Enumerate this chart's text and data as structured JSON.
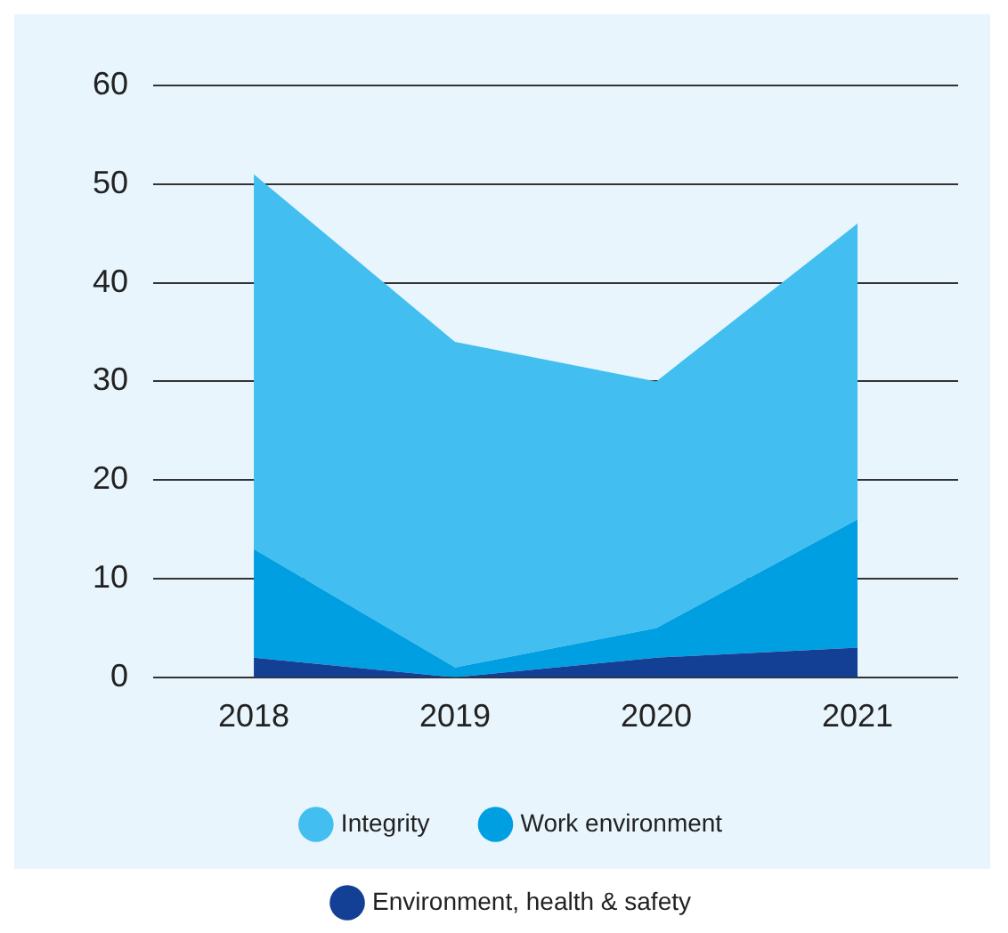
{
  "chart_data": {
    "type": "area",
    "stacked": true,
    "categories": [
      "2018",
      "2019",
      "2020",
      "2021"
    ],
    "series": [
      {
        "name": "Environment, health & safety",
        "color": "#133f94",
        "values": [
          2,
          0,
          2,
          3
        ]
      },
      {
        "name": "Work environment",
        "color": "#009fe2",
        "values": [
          11,
          1,
          3,
          13
        ]
      },
      {
        "name": "Integrity",
        "color": "#42bff0",
        "values": [
          38,
          33,
          25,
          30
        ]
      }
    ],
    "ylim": [
      0,
      60
    ],
    "yticks": [
      0,
      10,
      20,
      30,
      40,
      50,
      60
    ],
    "grid": "y",
    "legend": "bottom"
  }
}
